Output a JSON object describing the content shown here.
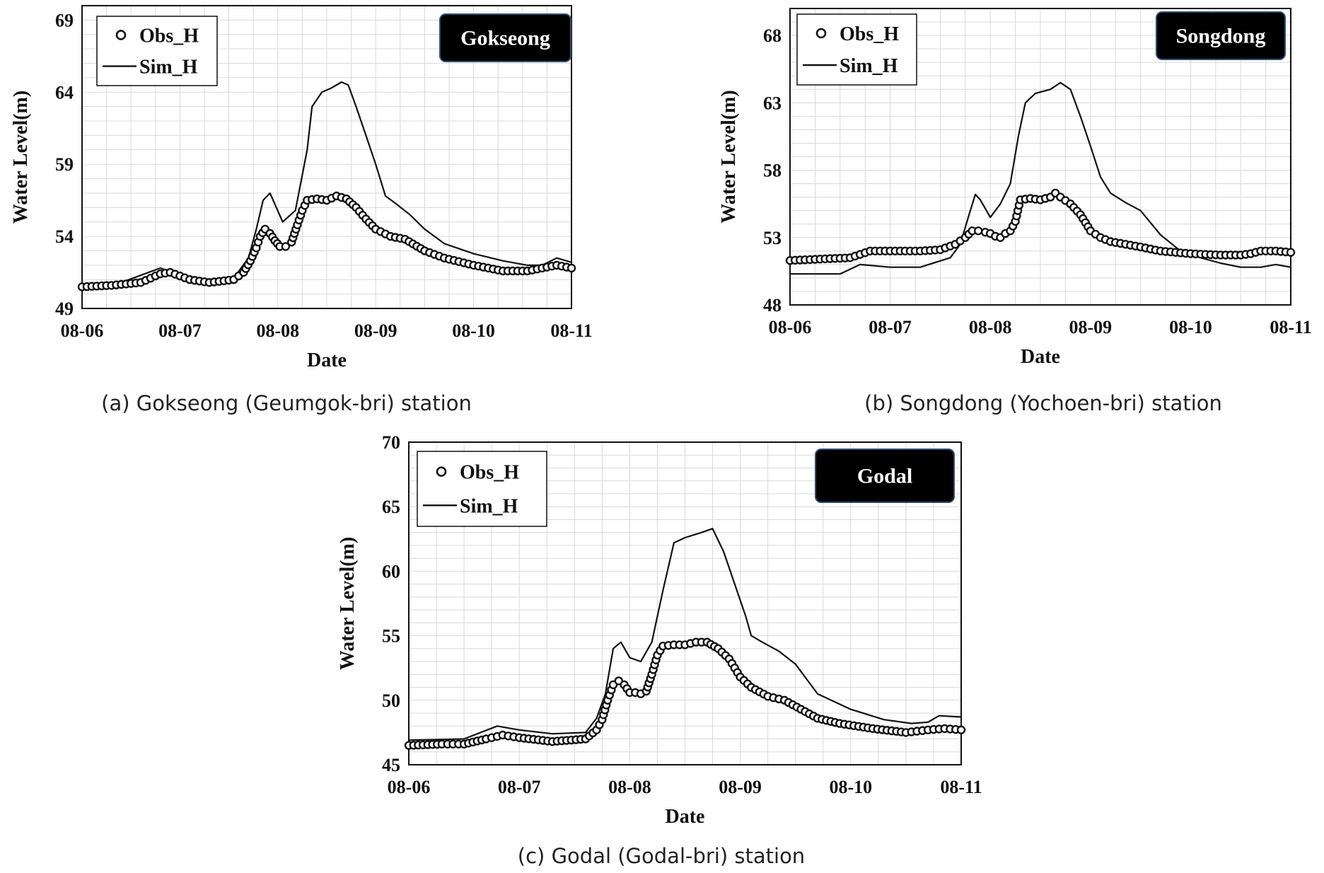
{
  "chart_data": [
    {
      "type": "line",
      "panel": "a",
      "caption": "(a) Gokseong (Geumgok-bri) station",
      "station_label": "Gokseong",
      "xlabel": "Date",
      "ylabel": "Water Level(m)",
      "categories": [
        "08-06",
        "08-07",
        "08-08",
        "08-09",
        "08-10",
        "08-11"
      ],
      "xlim": [
        0,
        5
      ],
      "ylim": [
        49,
        70
      ],
      "yticks": [
        49,
        54,
        59,
        64,
        69
      ],
      "grid": true,
      "legend": {
        "placement": "top-left",
        "entries": [
          "Obs_H",
          "Sim_H"
        ]
      },
      "series": [
        {
          "name": "Sim_H",
          "style": "line",
          "x": [
            0,
            0.4,
            0.8,
            1.0,
            1.3,
            1.55,
            1.7,
            1.78,
            1.85,
            1.92,
            2.05,
            2.18,
            2.3,
            2.35,
            2.45,
            2.55,
            2.65,
            2.72,
            2.8,
            2.9,
            3.0,
            3.1,
            3.2,
            3.35,
            3.5,
            3.7,
            4.0,
            4.3,
            4.55,
            4.7,
            4.85,
            5.0
          ],
          "y": [
            50.6,
            50.8,
            51.8,
            51.3,
            51.0,
            51.1,
            52.5,
            54.5,
            56.5,
            57.0,
            55.0,
            55.8,
            60.0,
            63.0,
            64.0,
            64.3,
            64.7,
            64.5,
            63.0,
            61.0,
            59.0,
            56.8,
            56.3,
            55.5,
            54.5,
            53.5,
            52.8,
            52.3,
            52.0,
            52.0,
            52.5,
            52.2
          ]
        },
        {
          "name": "Obs_H",
          "style": "circle",
          "x": [
            0,
            0.3,
            0.6,
            0.8,
            0.9,
            1.1,
            1.3,
            1.55,
            1.65,
            1.72,
            1.78,
            1.82,
            1.87,
            1.92,
            1.97,
            2.02,
            2.08,
            2.14,
            2.2,
            2.25,
            2.3,
            2.4,
            2.5,
            2.6,
            2.7,
            2.8,
            2.9,
            3.0,
            3.15,
            3.3,
            3.5,
            3.7,
            4.0,
            4.3,
            4.55,
            4.7,
            4.85,
            5.0
          ],
          "y": [
            50.5,
            50.6,
            50.8,
            51.4,
            51.5,
            51.0,
            50.8,
            51.0,
            51.5,
            52.3,
            53.2,
            54.0,
            54.5,
            54.2,
            53.7,
            53.3,
            53.3,
            53.6,
            54.8,
            55.8,
            56.5,
            56.6,
            56.5,
            56.8,
            56.6,
            56.0,
            55.2,
            54.5,
            54.0,
            53.8,
            53.0,
            52.5,
            52.0,
            51.6,
            51.6,
            51.8,
            52.0,
            51.8
          ]
        }
      ]
    },
    {
      "type": "line",
      "panel": "b",
      "caption": "(b) Songdong (Yochoen-bri) station",
      "station_label": "Songdong",
      "xlabel": "Date",
      "ylabel": "Water Level(m)",
      "categories": [
        "08-06",
        "08-07",
        "08-08",
        "08-09",
        "08-10",
        "08-11"
      ],
      "xlim": [
        0,
        5
      ],
      "ylim": [
        48,
        70
      ],
      "yticks": [
        48,
        53,
        58,
        63,
        68
      ],
      "grid": true,
      "legend": {
        "placement": "top-left",
        "entries": [
          "Obs_H",
          "Sim_H"
        ]
      },
      "series": [
        {
          "name": "Sim_H",
          "style": "line",
          "x": [
            0,
            0.5,
            0.7,
            1.0,
            1.3,
            1.6,
            1.7,
            1.78,
            1.85,
            1.9,
            2.0,
            2.1,
            2.2,
            2.28,
            2.35,
            2.45,
            2.6,
            2.7,
            2.8,
            2.9,
            3.0,
            3.1,
            3.2,
            3.35,
            3.5,
            3.7,
            3.9,
            4.1,
            4.3,
            4.5,
            4.7,
            4.85,
            5.0
          ],
          "y": [
            50.3,
            50.3,
            51.0,
            50.8,
            50.8,
            51.5,
            52.5,
            54.5,
            56.2,
            55.8,
            54.5,
            55.5,
            57.0,
            60.5,
            63.0,
            63.7,
            64.0,
            64.5,
            64.0,
            62.0,
            59.8,
            57.5,
            56.3,
            55.6,
            55.0,
            53.2,
            52.0,
            51.5,
            51.1,
            50.8,
            50.8,
            51.0,
            50.8
          ]
        },
        {
          "name": "Obs_H",
          "style": "circle",
          "x": [
            0,
            0.3,
            0.6,
            0.8,
            1.0,
            1.3,
            1.5,
            1.65,
            1.75,
            1.82,
            1.88,
            1.95,
            2.0,
            2.05,
            2.1,
            2.15,
            2.2,
            2.25,
            2.3,
            2.4,
            2.5,
            2.6,
            2.65,
            2.7,
            2.8,
            2.9,
            3.0,
            3.1,
            3.2,
            3.35,
            3.5,
            3.7,
            4.0,
            4.3,
            4.5,
            4.6,
            4.7,
            4.85,
            5.0
          ],
          "y": [
            51.3,
            51.4,
            51.5,
            52.0,
            52.0,
            52.0,
            52.1,
            52.5,
            53.0,
            53.5,
            53.5,
            53.4,
            53.3,
            53.1,
            53.0,
            53.3,
            53.5,
            54.2,
            55.8,
            55.9,
            55.8,
            56.0,
            56.3,
            56.0,
            55.5,
            54.7,
            53.5,
            53.0,
            52.7,
            52.5,
            52.3,
            52.0,
            51.8,
            51.7,
            51.7,
            51.8,
            52.0,
            52.0,
            51.9
          ]
        }
      ]
    },
    {
      "type": "line",
      "panel": "c",
      "caption": "(c) Godal (Godal-bri) station",
      "station_label": "Godal",
      "xlabel": "Date",
      "ylabel": "Water Level(m)",
      "categories": [
        "08-06",
        "08-07",
        "08-08",
        "08-09",
        "08-10",
        "08-11"
      ],
      "xlim": [
        0,
        5
      ],
      "ylim": [
        45,
        70
      ],
      "yticks": [
        45,
        50,
        55,
        60,
        65,
        70
      ],
      "grid": true,
      "legend": {
        "placement": "top-left",
        "entries": [
          "Obs_H",
          "Sim_H"
        ]
      },
      "series": [
        {
          "name": "Sim_H",
          "style": "line",
          "x": [
            0,
            0.5,
            0.8,
            1.0,
            1.3,
            1.6,
            1.7,
            1.78,
            1.85,
            1.92,
            2.0,
            2.1,
            2.2,
            2.3,
            2.4,
            2.5,
            2.65,
            2.75,
            2.85,
            2.95,
            3.05,
            3.1,
            3.2,
            3.35,
            3.5,
            3.7,
            4.0,
            4.3,
            4.55,
            4.7,
            4.8,
            5.0
          ],
          "y": [
            46.9,
            47.0,
            48.0,
            47.7,
            47.4,
            47.5,
            48.6,
            50.5,
            54.0,
            54.5,
            53.3,
            53.0,
            54.5,
            58.5,
            62.2,
            62.6,
            63.0,
            63.3,
            61.5,
            59.0,
            56.5,
            55.0,
            54.5,
            53.8,
            52.8,
            50.5,
            49.3,
            48.5,
            48.2,
            48.3,
            48.8,
            48.7
          ]
        },
        {
          "name": "Obs_H",
          "style": "circle",
          "x": [
            0,
            0.3,
            0.5,
            0.7,
            0.85,
            1.0,
            1.3,
            1.6,
            1.7,
            1.75,
            1.8,
            1.85,
            1.9,
            1.95,
            2.0,
            2.05,
            2.1,
            2.15,
            2.2,
            2.25,
            2.3,
            2.4,
            2.5,
            2.6,
            2.7,
            2.8,
            2.9,
            3.0,
            3.1,
            3.25,
            3.4,
            3.55,
            3.7,
            3.9,
            4.2,
            4.5,
            4.7,
            4.85,
            5.0
          ],
          "y": [
            46.5,
            46.6,
            46.6,
            47.0,
            47.3,
            47.1,
            46.8,
            47.0,
            47.7,
            48.5,
            50.0,
            51.2,
            51.5,
            51.2,
            50.6,
            50.6,
            50.5,
            50.7,
            52.0,
            53.5,
            54.2,
            54.3,
            54.3,
            54.5,
            54.5,
            54.0,
            53.2,
            51.8,
            51.0,
            50.3,
            50.0,
            49.3,
            48.6,
            48.2,
            47.8,
            47.5,
            47.7,
            47.8,
            47.7
          ]
        }
      ]
    }
  ]
}
